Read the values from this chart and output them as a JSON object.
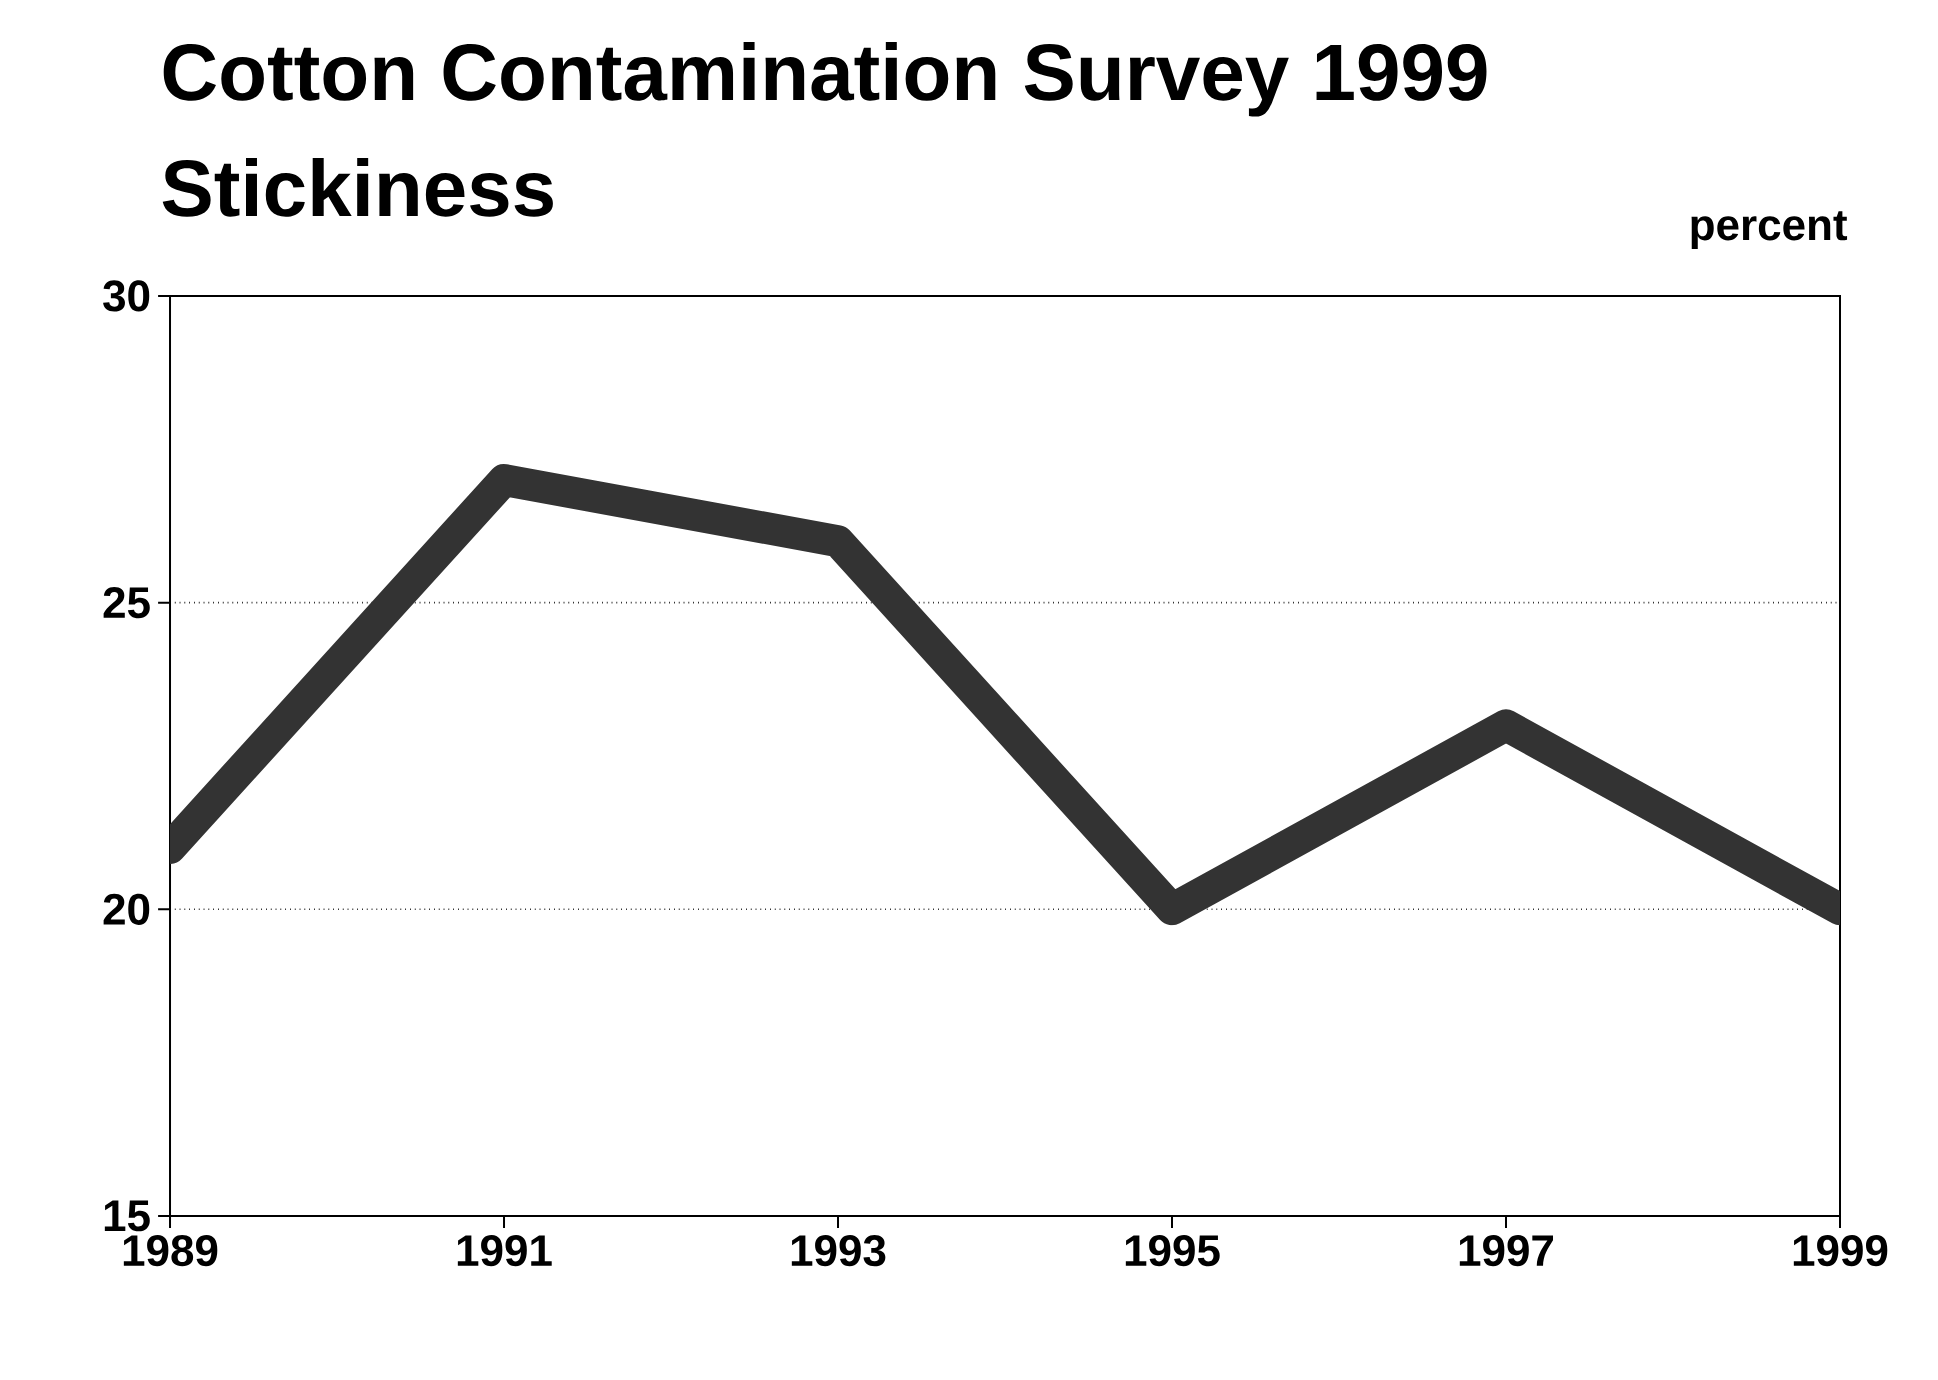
{
  "chart_data": {
    "type": "line",
    "title": "Cotton Contamination Survey 1999",
    "subtitle": "Stickiness",
    "ylabel": "percent",
    "x": [
      1989,
      1991,
      1993,
      1995,
      1997,
      1999
    ],
    "series": [
      {
        "color": "#333333",
        "values": [
          21,
          27,
          26,
          20,
          23,
          20
        ]
      }
    ],
    "xlim": [
      1989,
      1999
    ],
    "xticks": [
      1989,
      1991,
      1993,
      1995,
      1997,
      1999
    ],
    "ylim": [
      15,
      30
    ],
    "yticks": [
      15,
      20,
      25,
      30
    ],
    "grid": "y"
  }
}
